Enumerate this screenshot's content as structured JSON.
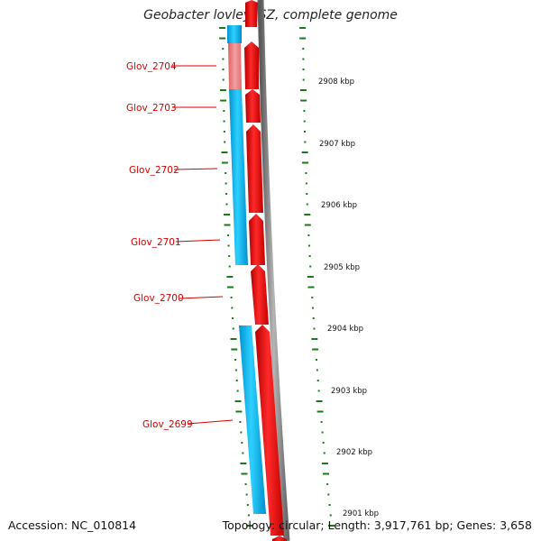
{
  "header": {
    "title": "Geobacter lovleyi SZ, complete genome"
  },
  "footer": {
    "accession": "Accession: NC_010814",
    "stats": "Topology: circular; Length: 3,917,761 bp; Genes: 3,658"
  },
  "colors": {
    "cds_forward": "#ee0000",
    "cds_reverse": "#00bbf0",
    "cds_faded": "#f08080",
    "gc_skew": "#1a7a1a",
    "backbone": "#888888",
    "label": "#d40000"
  },
  "genes": [
    {
      "name": "Glov_2704",
      "strand": "reverse",
      "color": "faded"
    },
    {
      "name": "Glov_2703",
      "strand": "reverse",
      "color": "normal"
    },
    {
      "name": "Glov_2702",
      "strand": "reverse",
      "color": "normal"
    },
    {
      "name": "Glov_2701",
      "strand": "reverse",
      "color": "normal"
    },
    {
      "name": "Glov_2700",
      "strand": "reverse",
      "color": "normal"
    },
    {
      "name": "Glov_2699",
      "strand": "reverse",
      "color": "normal"
    }
  ],
  "ticks": [
    "2908 kbp",
    "2907 kbp",
    "2906 kbp",
    "2905 kbp",
    "2904 kbp",
    "2903 kbp",
    "2902 kbp",
    "2901 kbp"
  ]
}
